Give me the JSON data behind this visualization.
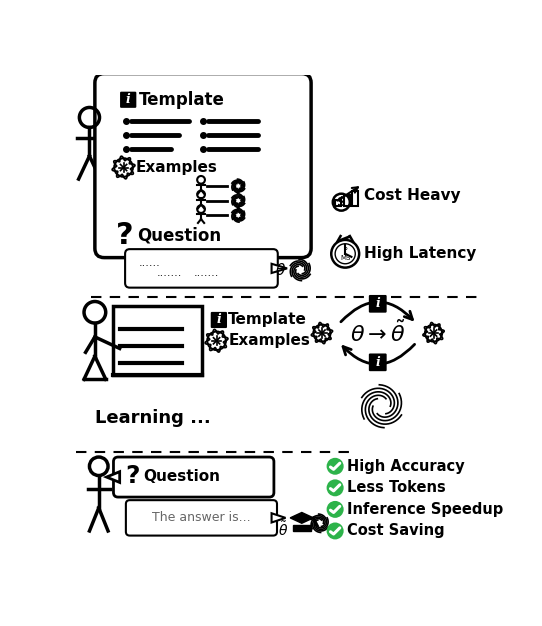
{
  "bg_color": "#ffffff",
  "s1_template": "Template",
  "s1_examples": "Examples",
  "s1_question": "Question",
  "s1_cost": "Cost Heavy",
  "s1_latency": "High Latency",
  "s2_template": "Template",
  "s2_examples": "Examples",
  "s2_learning": "Learning ...",
  "s3_question": "Question",
  "s3_answer": "The answer is...",
  "s3_b1": "High Accuracy",
  "s3_b2": "Less Tokens",
  "s3_b3": "Inference Speedup",
  "s3_b4": "Cost Saving",
  "colors": {
    "black": "#000000",
    "white": "#ffffff",
    "green": "#2db34a",
    "gray": "#666666"
  }
}
